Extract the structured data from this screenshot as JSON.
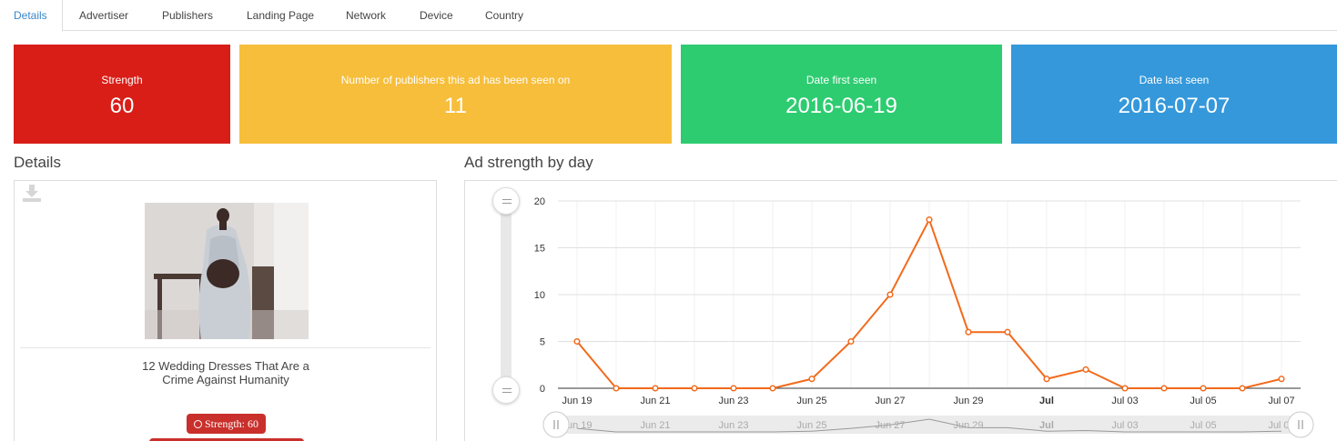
{
  "tabs": [
    {
      "label": "Details",
      "active": true
    },
    {
      "label": "Advertiser"
    },
    {
      "label": "Publishers"
    },
    {
      "label": "Landing Page"
    },
    {
      "label": "Network"
    },
    {
      "label": "Device"
    },
    {
      "label": "Country"
    }
  ],
  "cards": {
    "strength": {
      "label": "Strength",
      "value": "60",
      "color": "#d91e18"
    },
    "publishers": {
      "label": "Number of publishers this ad has been seen on",
      "value": "11",
      "color": "#f7be3b"
    },
    "first_seen": {
      "label": "Date first seen",
      "value": "2016-06-19",
      "color": "#2ecc71"
    },
    "last_seen": {
      "label": "Date last seen",
      "value": "2016-07-07",
      "color": "#3498db"
    }
  },
  "details": {
    "title": "Details",
    "download_icon": "download-icon",
    "ad_title": "12 Wedding Dresses That Are a Crime Against Humanity",
    "strength_badge": "Strength: 60",
    "badge_icon": "clock-icon"
  },
  "chart_section_title": "Ad strength by day",
  "chart_data": {
    "type": "line",
    "x": [
      "Jun 19",
      "Jun 20",
      "Jun 21",
      "Jun 22",
      "Jun 23",
      "Jun 24",
      "Jun 25",
      "Jun 26",
      "Jun 27",
      "Jun 28",
      "Jun 29",
      "Jun 30",
      "Jul 01",
      "Jul 02",
      "Jul 03",
      "Jul 04",
      "Jul 05",
      "Jul 06",
      "Jul 07"
    ],
    "tick_labels": [
      "Jun 19",
      "Jun 21",
      "Jun 23",
      "Jun 25",
      "Jun 27",
      "Jun 29",
      "Jul",
      "Jul 03",
      "Jul 05",
      "Jul 07"
    ],
    "series": [
      {
        "values": [
          5,
          0,
          0,
          0,
          0,
          0,
          1,
          5,
          10,
          18,
          6,
          6,
          1,
          2,
          0,
          0,
          0,
          0,
          1
        ],
        "color": "#f26a1b"
      }
    ],
    "y_ticks": [
      "0",
      "5",
      "10",
      "15",
      "20"
    ],
    "ylim": [
      0,
      20
    ],
    "grid": true
  }
}
